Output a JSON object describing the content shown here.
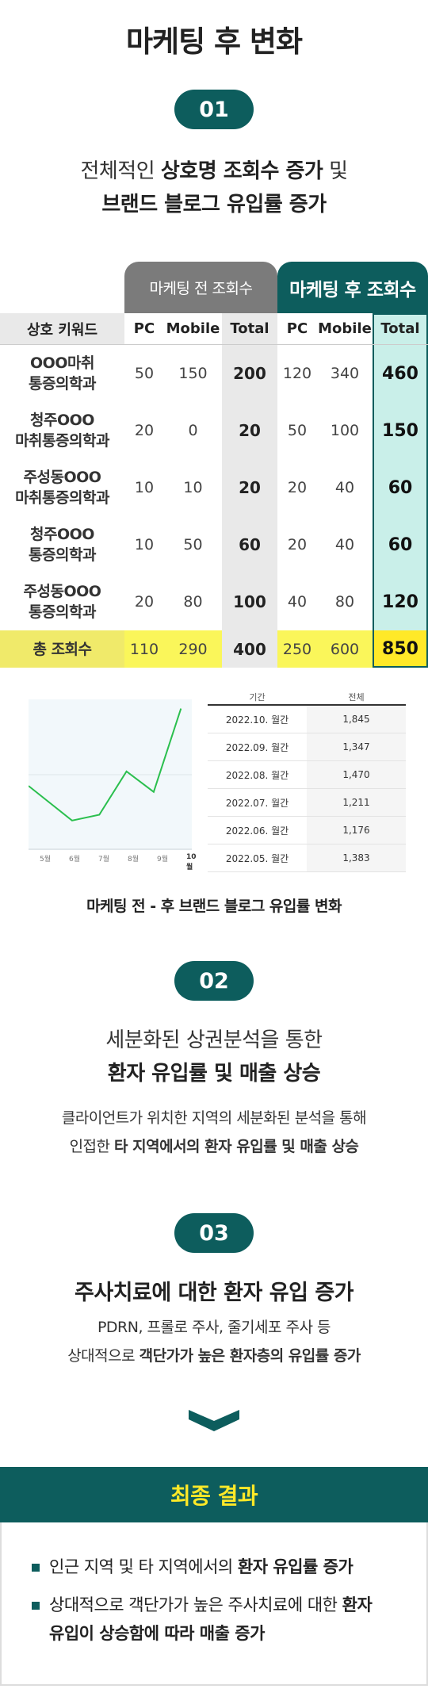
{
  "header": {
    "title": "마케팅 후 변화"
  },
  "section1": {
    "number": "01",
    "line1_prefix": "전체적인 ",
    "line1_bold": "상호명 조회수 증가",
    "line1_suffix": " 및",
    "line2_bold": "브랜드 블로그 유입률 증가"
  },
  "table": {
    "group_before": "마케팅 전 조회수",
    "group_after": "마케팅 후 조회수",
    "columns": [
      "상호 키워드",
      "PC",
      "Mobile",
      "Total",
      "PC",
      "Mobile",
      "Total"
    ],
    "rows": [
      {
        "kw1": "OOO마취",
        "kw2": "통증의학과",
        "b_pc": "50",
        "b_mo": "150",
        "b_tot": "200",
        "a_pc": "120",
        "a_mo": "340",
        "a_tot": "460"
      },
      {
        "kw1": "청주OOO",
        "kw2": "마취통증의학과",
        "b_pc": "20",
        "b_mo": "0",
        "b_tot": "20",
        "a_pc": "50",
        "a_mo": "100",
        "a_tot": "150"
      },
      {
        "kw1": "주성동OOO",
        "kw2": "마취통증의학과",
        "b_pc": "10",
        "b_mo": "10",
        "b_tot": "20",
        "a_pc": "20",
        "a_mo": "40",
        "a_tot": "60"
      },
      {
        "kw1": "청주OOO",
        "kw2": "통증의학과",
        "b_pc": "10",
        "b_mo": "50",
        "b_tot": "60",
        "a_pc": "20",
        "a_mo": "40",
        "a_tot": "60"
      },
      {
        "kw1": "주성동OOO",
        "kw2": "통증의학과",
        "b_pc": "20",
        "b_mo": "80",
        "b_tot": "100",
        "a_pc": "40",
        "a_mo": "80",
        "a_tot": "120"
      }
    ],
    "total_row": {
      "label": "총 조회수",
      "b_pc": "110",
      "b_mo": "290",
      "b_tot": "400",
      "a_pc": "250",
      "a_mo": "600",
      "a_tot": "850"
    }
  },
  "chart_data": {
    "type": "line",
    "categories": [
      "5월",
      "6월",
      "7월",
      "8월",
      "9월",
      "10월"
    ],
    "values": [
      1383,
      1176,
      1211,
      1470,
      1347,
      1845
    ],
    "series_color": "#2bbf4e"
  },
  "data_table": {
    "headers": [
      "기간",
      "전체"
    ],
    "rows": [
      {
        "period": "2022.10. 월간",
        "value": "1,845"
      },
      {
        "period": "2022.09. 월간",
        "value": "1,347"
      },
      {
        "period": "2022.08. 월간",
        "value": "1,470"
      },
      {
        "period": "2022.07. 월간",
        "value": "1,211"
      },
      {
        "period": "2022.06. 월간",
        "value": "1,176"
      },
      {
        "period": "2022.05. 월간",
        "value": "1,383"
      }
    ]
  },
  "chart_caption": "마케팅 전 - 후 브랜드 블로그 유입률 변화",
  "section2": {
    "number": "02",
    "line1": "세분화된 상권분석을 통한",
    "line2_bold": "환자 유입률 및 매출 상승",
    "desc1": "클라이언트가 위치한 지역의 세분화된 분석을 통해",
    "desc2_prefix": "인접한 ",
    "desc2_bold": "타 지역에서의 환자 유입률 및 매출 상승"
  },
  "section3": {
    "number": "03",
    "title": "주사치료에 대한 환자 유입 증가",
    "desc1": "PDRN, 프롤로 주사, 줄기세포 주사 등",
    "desc2_prefix": "상대적으로 ",
    "desc2_bold": "객단가가 높은 환자층의 유입률 증가"
  },
  "result": {
    "title": "최종 결과",
    "b1_prefix": "인근 지역 및 타 지역에서의 ",
    "b1_bold": "환자 유입률 증가",
    "b2_line1_prefix": "상대적으로 객단가가 높은 주사치료에 대한 ",
    "b2_line1_bold": "환자",
    "b2_line2_bold": "유입이 상승함에 따라 매출 증가"
  },
  "colors": {
    "brand": "#0d5d5d",
    "accent_yellow": "#ffe928",
    "total_row": "#faf65a",
    "after_total_col": "#c9efe9"
  },
  "icons": {
    "divider": "chevron-down-icon",
    "bullet": "square-bullet-icon"
  }
}
